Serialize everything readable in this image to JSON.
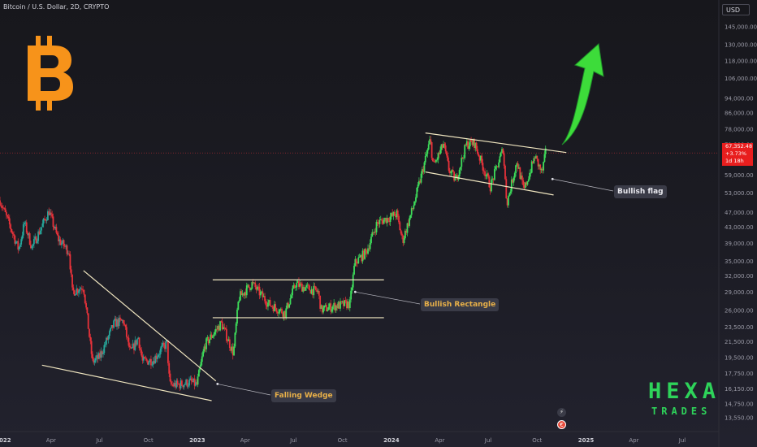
{
  "header": {
    "title": "Bitcoin / U.S. Dollar, 2D, CRYPTO"
  },
  "currency_button": {
    "label": "USD"
  },
  "price_tag": {
    "price": "67,352.48",
    "change": "+3.73%",
    "countdown": "1d 18h"
  },
  "annotations": {
    "falling_wedge": "Falling Wedge",
    "bullish_rectangle": "Bullish Rectangle",
    "bullish_flag": "Bullish flag"
  },
  "brand": {
    "line1": "HEXA",
    "line2": "TRADES"
  },
  "icons": {
    "logo": "bitcoin-logo-icon",
    "bolt": "lightning-icon",
    "events": "earnings-event-icon"
  },
  "colors": {
    "up": "#26a69a",
    "up_bright": "#3ddc5a",
    "down": "#e8323a",
    "pattern": "#f0e6c0",
    "arrow": "#3ddc3a",
    "bitcoin": "#f7931a"
  },
  "chart_data": {
    "type": "candlestick",
    "title": "Bitcoin / U.S. Dollar, 2D, CRYPTO",
    "y_scale": "log",
    "ylim": [
      12500,
      162000
    ],
    "y_ticks": [
      13550,
      14750,
      16150,
      17750,
      19500,
      21500,
      23500,
      26000,
      29000,
      32000,
      35000,
      39000,
      43000,
      47000,
      53000,
      59000,
      65000,
      71000,
      78000,
      86000,
      94000,
      106000,
      118000,
      130000,
      145000
    ],
    "y_tick_labels": [
      "13,550.00",
      "14,750.00",
      "16,150.00",
      "17,750.00",
      "19,500.00",
      "21,500.00",
      "23,500.00",
      "26,000.00",
      "29,000.00",
      "32,000.00",
      "35,000.00",
      "39,000.00",
      "43,000.00",
      "47,000.00",
      "53,000.00",
      "59,000.00",
      "65,000.00",
      "71,000.00",
      "78,000.00",
      "86,000.00",
      "94,000.00",
      "106,000.00",
      "118,000.00",
      "130,000.00",
      "145,000.00"
    ],
    "x_ticks": [
      "2022",
      "Apr",
      "Jul",
      "Oct",
      "2023",
      "Apr",
      "Jul",
      "Oct",
      "2024",
      "Apr",
      "Jul",
      "Oct",
      "2025",
      "Apr",
      "Jul"
    ],
    "x_tick_dates": [
      "2022-01",
      "2022-04",
      "2022-07",
      "2022-10",
      "2023-01",
      "2023-04",
      "2023-07",
      "2023-10",
      "2024-01",
      "2024-04",
      "2024-07",
      "2024-10",
      "2025-01",
      "2025-04",
      "2025-07"
    ],
    "last_price": 67352.48,
    "price_path": [
      [
        "2021-12-26",
        50500
      ],
      [
        "2022-01-20",
        41000
      ],
      [
        "2022-01-30",
        37500
      ],
      [
        "2022-02-10",
        44000
      ],
      [
        "2022-02-24",
        38000
      ],
      [
        "2022-03-28",
        47300
      ],
      [
        "2022-04-14",
        40000
      ],
      [
        "2022-05-05",
        37000
      ],
      [
        "2022-05-11",
        29000
      ],
      [
        "2022-06-01",
        30000
      ],
      [
        "2022-06-14",
        21000
      ],
      [
        "2022-06-18",
        19000
      ],
      [
        "2022-07-01",
        19500
      ],
      [
        "2022-07-29",
        24000
      ],
      [
        "2022-08-15",
        24300
      ],
      [
        "2022-08-28",
        20000
      ],
      [
        "2022-09-12",
        22000
      ],
      [
        "2022-09-20",
        19000
      ],
      [
        "2022-10-10",
        19200
      ],
      [
        "2022-10-28",
        20700
      ],
      [
        "2022-11-05",
        21200
      ],
      [
        "2022-11-10",
        16500
      ],
      [
        "2022-11-25",
        16500
      ],
      [
        "2022-12-20",
        16800
      ],
      [
        "2022-12-31",
        16500
      ],
      [
        "2023-01-15",
        21000
      ],
      [
        "2023-02-15",
        24000
      ],
      [
        "2023-03-10",
        20000
      ],
      [
        "2023-03-20",
        28000
      ],
      [
        "2023-04-14",
        30500
      ],
      [
        "2023-05-15",
        27000
      ],
      [
        "2023-06-15",
        25500
      ],
      [
        "2023-07-05",
        30500
      ],
      [
        "2023-07-15",
        30000
      ],
      [
        "2023-08-16",
        29000
      ],
      [
        "2023-08-22",
        26000
      ],
      [
        "2023-09-15",
        26600
      ],
      [
        "2023-10-15",
        27000
      ],
      [
        "2023-10-24",
        34500
      ],
      [
        "2023-11-15",
        37000
      ],
      [
        "2023-12-05",
        44000
      ],
      [
        "2024-01-11",
        46500
      ],
      [
        "2024-01-22",
        39500
      ],
      [
        "2024-02-10",
        48000
      ],
      [
        "2024-02-28",
        60000
      ],
      [
        "2024-03-14",
        73000
      ],
      [
        "2024-03-20",
        62000
      ],
      [
        "2024-04-08",
        71000
      ],
      [
        "2024-04-18",
        61000
      ],
      [
        "2024-05-01",
        57000
      ],
      [
        "2024-05-21",
        71000
      ],
      [
        "2024-06-05",
        71500
      ],
      [
        "2024-06-24",
        60500
      ],
      [
        "2024-07-05",
        55000
      ],
      [
        "2024-07-29",
        69000
      ],
      [
        "2024-08-05",
        49500
      ],
      [
        "2024-08-24",
        64000
      ],
      [
        "2024-09-06",
        53500
      ],
      [
        "2024-09-27",
        66000
      ],
      [
        "2024-10-10",
        59500
      ],
      [
        "2024-10-17",
        67352.48
      ]
    ],
    "patterns": [
      {
        "name": "Falling Wedge",
        "lines": [
          [
            [
              "2022-06-01",
              33000
            ],
            [
              "2023-02-05",
              16900
            ]
          ],
          [
            [
              "2022-03-15",
              18600
            ],
            [
              "2023-01-28",
              15000
            ]
          ]
        ]
      },
      {
        "name": "Bullish Rectangle",
        "lines": [
          [
            [
              "2023-01-30",
              31200
            ],
            [
              "2023-12-18",
              31200
            ]
          ],
          [
            [
              "2023-01-30",
              24800
            ],
            [
              "2023-12-18",
              24800
            ]
          ]
        ]
      },
      {
        "name": "Bullish flag",
        "lines": [
          [
            [
              "2024-03-05",
              76000
            ],
            [
              "2024-11-25",
              67500
            ]
          ],
          [
            [
              "2024-03-05",
              60000
            ],
            [
              "2024-11-01",
              52200
            ]
          ]
        ]
      }
    ]
  }
}
